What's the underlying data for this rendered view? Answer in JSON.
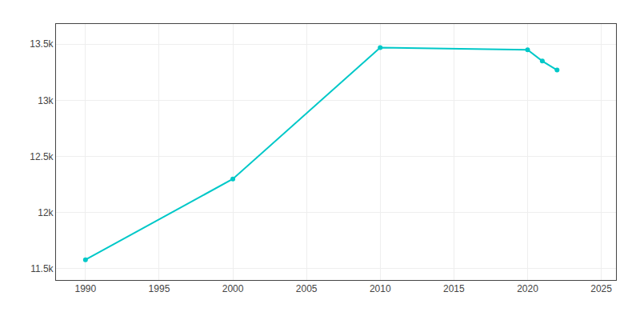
{
  "chart_data": {
    "type": "line",
    "x": [
      1990,
      2000,
      2010,
      2020,
      2021,
      2022
    ],
    "values": [
      11580,
      12300,
      13470,
      13450,
      13350,
      13270
    ],
    "color": "#00C8C8",
    "marker": "circle",
    "xlim": [
      1988,
      2026
    ],
    "xticks": [
      1990,
      1995,
      2000,
      2005,
      2010,
      2015,
      2020,
      2025
    ],
    "ylim": [
      11400,
      13680
    ],
    "yticks": [
      {
        "value": 11500,
        "label": "11.5k"
      },
      {
        "value": 12000,
        "label": "12k"
      },
      {
        "value": 12500,
        "label": "12.5k"
      },
      {
        "value": 13000,
        "label": "13k"
      },
      {
        "value": 13500,
        "label": "13.5k"
      }
    ],
    "grid": true
  }
}
